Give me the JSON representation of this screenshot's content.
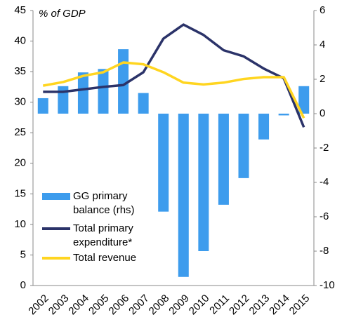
{
  "chart_data": {
    "type": "combo",
    "unit_label": "% of GDP",
    "categories": [
      "2002",
      "2003",
      "2004",
      "2005",
      "2006",
      "2007",
      "2008",
      "2009",
      "2010",
      "2011",
      "2012",
      "2013",
      "2014",
      "2015"
    ],
    "series": [
      {
        "name": "GG primary balance (rhs)",
        "type": "bar",
        "axis": "y2",
        "color": "#3d9ced",
        "values": [
          0.9,
          1.6,
          2.4,
          2.6,
          3.75,
          1.2,
          -5.7,
          -9.5,
          -8.0,
          -5.3,
          -3.75,
          -1.5,
          -0.1,
          1.6
        ]
      },
      {
        "name": "Total primary expenditure*",
        "type": "line",
        "color": "#2b3369",
        "values": [
          31.7,
          31.7,
          32.1,
          32.5,
          32.8,
          34.9,
          40.4,
          42.7,
          41.0,
          38.5,
          37.5,
          35.5,
          33.9,
          25.9
        ]
      },
      {
        "name": "Total revenue",
        "type": "line",
        "color": "#ffd520",
        "values": [
          32.7,
          33.3,
          34.3,
          34.9,
          36.5,
          36.2,
          34.9,
          33.2,
          32.9,
          33.2,
          33.8,
          34.1,
          34.1,
          27.4
        ]
      }
    ],
    "ylim": [
      0,
      45
    ],
    "yticks": [
      0,
      5,
      10,
      15,
      20,
      25,
      30,
      35,
      40,
      45
    ],
    "y2lim": [
      -10,
      6
    ],
    "y2ticks": [
      -10,
      -8,
      -6,
      -4,
      -2,
      0,
      2,
      4,
      6
    ],
    "legend": "lower-left",
    "grid": false
  }
}
